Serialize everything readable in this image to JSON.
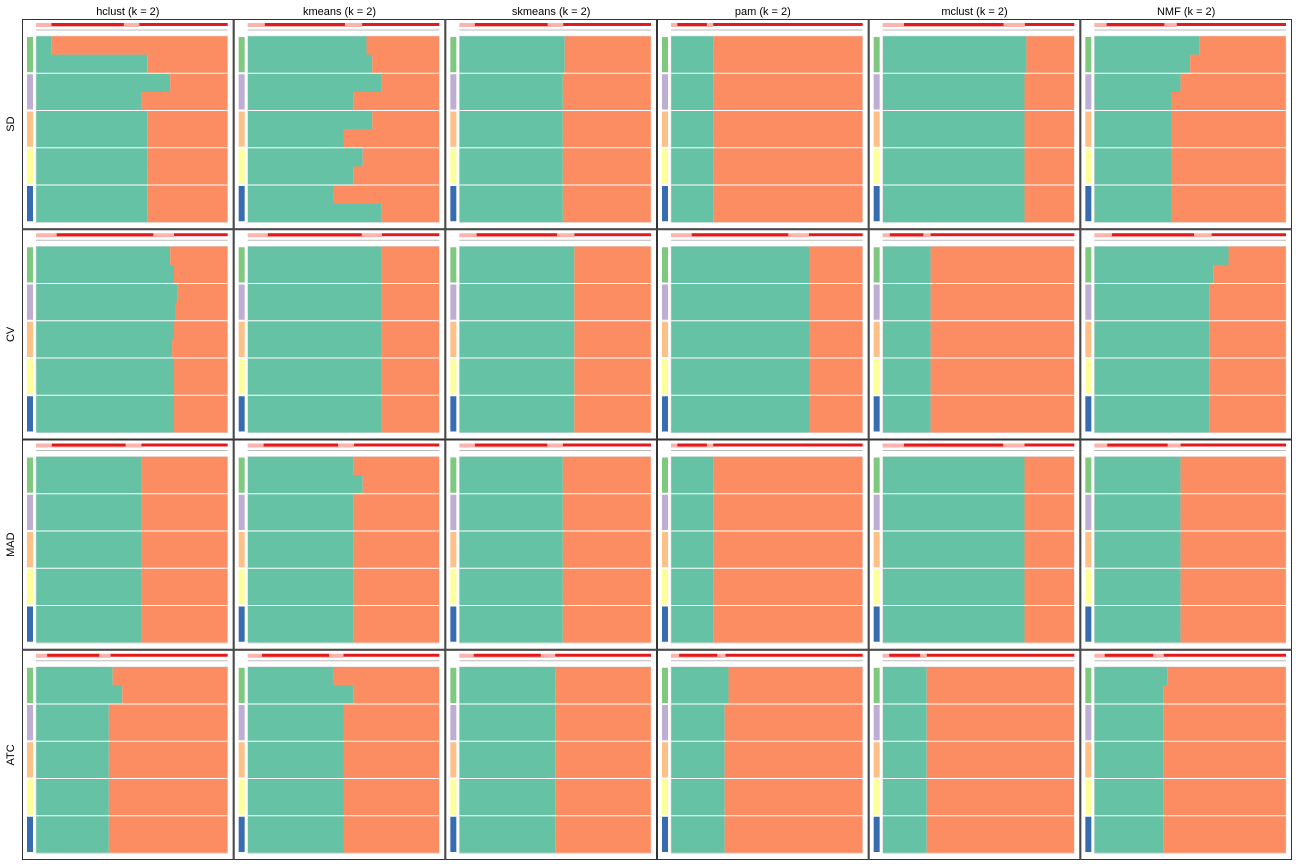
{
  "chart_data": {
    "type": "heatmap",
    "description_level": "collect-plots",
    "columns": [
      "hclust (k = 2)",
      "kmeans (k = 2)",
      "skmeans (k = 2)",
      "pam (k = 2)",
      "mclust (k = 2)",
      "NMF (k = 2)"
    ],
    "rows": [
      "SD",
      "CV",
      "MAD",
      "ATC"
    ],
    "row_groups": 5,
    "group_colors": [
      "#7FC97F",
      "#BEAED4",
      "#FDC086",
      "#FFFF99",
      "#386CB0"
    ],
    "class_colors": {
      "class1": "#66C2A5",
      "class2": "#FC8D62"
    },
    "top_bar_colors": {
      "strong": "#E31A1C",
      "light": "#FBB4AE"
    },
    "panels": [
      {
        "row": "SD",
        "col": "hclust (k = 2)",
        "green_fraction": [
          0.08,
          0.58,
          0.7,
          0.55,
          0.58,
          0.58,
          0.58,
          0.58,
          0.58,
          0.58
        ]
      },
      {
        "row": "SD",
        "col": "kmeans (k = 2)",
        "green_fraction": [
          0.62,
          0.65,
          0.7,
          0.55,
          0.65,
          0.5,
          0.6,
          0.55,
          0.45,
          0.7
        ]
      },
      {
        "row": "SD",
        "col": "skmeans (k = 2)",
        "green_fraction": [
          0.55,
          0.55,
          0.54,
          0.54,
          0.54,
          0.54,
          0.54,
          0.54,
          0.54,
          0.54
        ]
      },
      {
        "row": "SD",
        "col": "pam (k = 2)",
        "green_fraction": [
          0.22,
          0.22,
          0.22,
          0.22,
          0.22,
          0.22,
          0.22,
          0.22,
          0.22,
          0.22
        ]
      },
      {
        "row": "SD",
        "col": "mclust (k = 2)",
        "green_fraction": [
          0.75,
          0.75,
          0.74,
          0.74,
          0.74,
          0.74,
          0.74,
          0.74,
          0.74,
          0.74
        ]
      },
      {
        "row": "SD",
        "col": "NMF (k = 2)",
        "green_fraction": [
          0.55,
          0.5,
          0.45,
          0.4,
          0.4,
          0.4,
          0.4,
          0.4,
          0.4,
          0.4
        ]
      },
      {
        "row": "CV",
        "col": "hclust (k = 2)",
        "green_fraction": [
          0.7,
          0.72,
          0.74,
          0.73,
          0.72,
          0.71,
          0.72,
          0.72,
          0.72,
          0.72
        ]
      },
      {
        "row": "CV",
        "col": "kmeans (k = 2)",
        "green_fraction": [
          0.7,
          0.7,
          0.7,
          0.7,
          0.7,
          0.7,
          0.7,
          0.7,
          0.7,
          0.7
        ]
      },
      {
        "row": "CV",
        "col": "skmeans (k = 2)",
        "green_fraction": [
          0.6,
          0.6,
          0.6,
          0.6,
          0.6,
          0.6,
          0.6,
          0.6,
          0.6,
          0.6
        ]
      },
      {
        "row": "CV",
        "col": "pam (k = 2)",
        "green_fraction": [
          0.72,
          0.72,
          0.72,
          0.72,
          0.72,
          0.72,
          0.72,
          0.72,
          0.72,
          0.72
        ]
      },
      {
        "row": "CV",
        "col": "mclust (k = 2)",
        "green_fraction": [
          0.25,
          0.25,
          0.25,
          0.25,
          0.25,
          0.25,
          0.25,
          0.25,
          0.25,
          0.25
        ]
      },
      {
        "row": "CV",
        "col": "NMF (k = 2)",
        "green_fraction": [
          0.7,
          0.62,
          0.6,
          0.6,
          0.6,
          0.6,
          0.6,
          0.6,
          0.6,
          0.6
        ]
      },
      {
        "row": "MAD",
        "col": "hclust (k = 2)",
        "green_fraction": [
          0.55,
          0.55,
          0.55,
          0.55,
          0.55,
          0.55,
          0.55,
          0.55,
          0.55,
          0.55
        ]
      },
      {
        "row": "MAD",
        "col": "kmeans (k = 2)",
        "green_fraction": [
          0.55,
          0.6,
          0.55,
          0.55,
          0.55,
          0.55,
          0.55,
          0.55,
          0.55,
          0.55
        ]
      },
      {
        "row": "MAD",
        "col": "skmeans (k = 2)",
        "green_fraction": [
          0.54,
          0.54,
          0.54,
          0.54,
          0.54,
          0.54,
          0.54,
          0.54,
          0.54,
          0.54
        ]
      },
      {
        "row": "MAD",
        "col": "pam (k = 2)",
        "green_fraction": [
          0.22,
          0.22,
          0.22,
          0.22,
          0.22,
          0.22,
          0.22,
          0.22,
          0.22,
          0.22
        ]
      },
      {
        "row": "MAD",
        "col": "mclust (k = 2)",
        "green_fraction": [
          0.74,
          0.74,
          0.74,
          0.74,
          0.74,
          0.74,
          0.74,
          0.74,
          0.74,
          0.74
        ]
      },
      {
        "row": "MAD",
        "col": "NMF (k = 2)",
        "green_fraction": [
          0.45,
          0.45,
          0.45,
          0.45,
          0.45,
          0.45,
          0.45,
          0.45,
          0.45,
          0.45
        ]
      },
      {
        "row": "ATC",
        "col": "hclust (k = 2)",
        "green_fraction": [
          0.4,
          0.45,
          0.38,
          0.38,
          0.38,
          0.38,
          0.38,
          0.38,
          0.38,
          0.38
        ]
      },
      {
        "row": "ATC",
        "col": "kmeans (k = 2)",
        "green_fraction": [
          0.45,
          0.55,
          0.5,
          0.5,
          0.5,
          0.5,
          0.5,
          0.5,
          0.5,
          0.5
        ]
      },
      {
        "row": "ATC",
        "col": "skmeans (k = 2)",
        "green_fraction": [
          0.5,
          0.5,
          0.5,
          0.5,
          0.5,
          0.5,
          0.5,
          0.5,
          0.5,
          0.5
        ]
      },
      {
        "row": "ATC",
        "col": "pam (k = 2)",
        "green_fraction": [
          0.3,
          0.3,
          0.28,
          0.28,
          0.28,
          0.28,
          0.28,
          0.28,
          0.28,
          0.28
        ]
      },
      {
        "row": "ATC",
        "col": "mclust (k = 2)",
        "green_fraction": [
          0.23,
          0.23,
          0.23,
          0.23,
          0.23,
          0.23,
          0.23,
          0.23,
          0.23,
          0.23
        ]
      },
      {
        "row": "ATC",
        "col": "NMF (k = 2)",
        "green_fraction": [
          0.38,
          0.36,
          0.36,
          0.36,
          0.36,
          0.36,
          0.36,
          0.36,
          0.36,
          0.36
        ]
      }
    ]
  }
}
